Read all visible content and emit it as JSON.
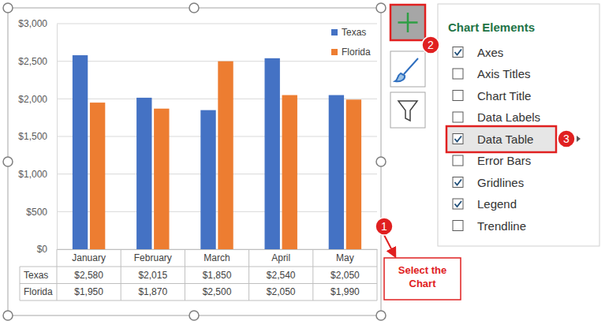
{
  "chart_data": {
    "type": "bar",
    "categories": [
      "January",
      "February",
      "March",
      "April",
      "May"
    ],
    "series": [
      {
        "name": "Texas",
        "color": "#4472c4",
        "values": [
          2580,
          2015,
          1850,
          2540,
          2050
        ],
        "value_labels": [
          "$2,580",
          "$2,015",
          "$1,850",
          "$2,540",
          "$2,050"
        ]
      },
      {
        "name": "Florida",
        "color": "#ed7d31",
        "values": [
          1950,
          1870,
          2500,
          2050,
          1990
        ],
        "value_labels": [
          "$1,950",
          "$1,870",
          "$2,500",
          "$2,050",
          "$1,990"
        ]
      }
    ],
    "ylim": [
      0,
      3000
    ],
    "yticks": [
      {
        "value": 0,
        "label": "$0"
      },
      {
        "value": 500,
        "label": "$500"
      },
      {
        "value": 1000,
        "label": "$1,000"
      },
      {
        "value": 1500,
        "label": "$1,500"
      },
      {
        "value": 2000,
        "label": "$2,000"
      },
      {
        "value": 2500,
        "label": "$2,500"
      },
      {
        "value": 3000,
        "label": "$3,000"
      }
    ],
    "grid": true,
    "legend": "top-right"
  },
  "chart_elements_panel": {
    "title": "Chart Elements",
    "items": [
      {
        "label": "Axes",
        "checked": true
      },
      {
        "label": "Axis Titles",
        "checked": false
      },
      {
        "label": "Chart Title",
        "checked": false
      },
      {
        "label": "Data Labels",
        "checked": false
      },
      {
        "label": "Data Table",
        "checked": true,
        "selected": true
      },
      {
        "label": "Error Bars",
        "checked": false
      },
      {
        "label": "Gridlines",
        "checked": true
      },
      {
        "label": "Legend",
        "checked": true
      },
      {
        "label": "Trendline",
        "checked": false
      }
    ]
  },
  "callouts": [
    {
      "number": 1,
      "text": [
        "Select the",
        "Chart"
      ]
    },
    {
      "number": 2
    },
    {
      "number": 3
    }
  ]
}
